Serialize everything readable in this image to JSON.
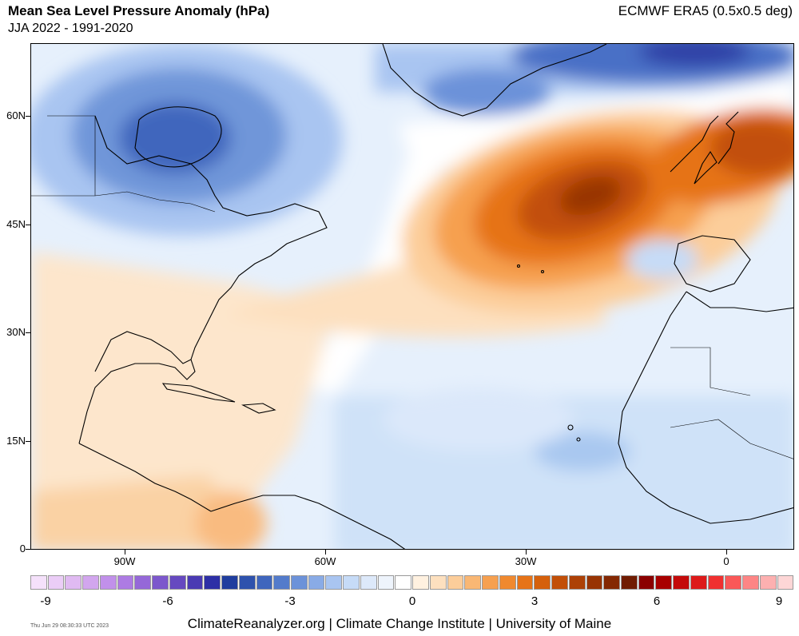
{
  "header": {
    "title": "Mean Sea Level Pressure Anomaly (hPa)",
    "subtitle": "JJA 2022 - 1991-2020",
    "source": "ECMWF ERA5 (0.5x0.5 deg)"
  },
  "map": {
    "y_ticks": [
      "60N",
      "45N",
      "30N",
      "15N",
      "0"
    ],
    "x_ticks": [
      "90W",
      "60W",
      "30W",
      "0"
    ],
    "features": [
      "North America",
      "Greenland",
      "Europe",
      "Africa",
      "Caribbean",
      "Central America",
      "South America"
    ]
  },
  "colorbar": {
    "labels": [
      "-9",
      "-6",
      "-3",
      "0",
      "3",
      "6",
      "9"
    ],
    "colors": [
      "#f5e1fb",
      "#ebcdf7",
      "#e0baf2",
      "#d2a6ee",
      "#c190ea",
      "#ad7be3",
      "#9568d8",
      "#7c58cc",
      "#6649c0",
      "#4a3ab3",
      "#2d2fa6",
      "#1f3d9e",
      "#2e52ad",
      "#3f66bd",
      "#537bcb",
      "#6c92d9",
      "#89abe6",
      "#a9c5f1",
      "#c6dbf7",
      "#dde9fa",
      "#eef4fc",
      "#ffffff",
      "#fff1e0",
      "#fde0bf",
      "#fccd9a",
      "#f9b774",
      "#f6a050",
      "#f0892f",
      "#e67318",
      "#d5600c",
      "#c24f08",
      "#ad4106",
      "#983404",
      "#842803",
      "#701c02",
      "#8b0000",
      "#a80000",
      "#c40a0a",
      "#dd1a1a",
      "#f03030",
      "#fa5858",
      "#fd8585",
      "#fdb0b0",
      "#fdd6d6"
    ]
  },
  "footer": {
    "credit": "ClimateReanalyzer.org | Climate Change Institute | University of Maine",
    "timestamp": "Thu Jun 29 08:30:33 UTC 2023"
  }
}
